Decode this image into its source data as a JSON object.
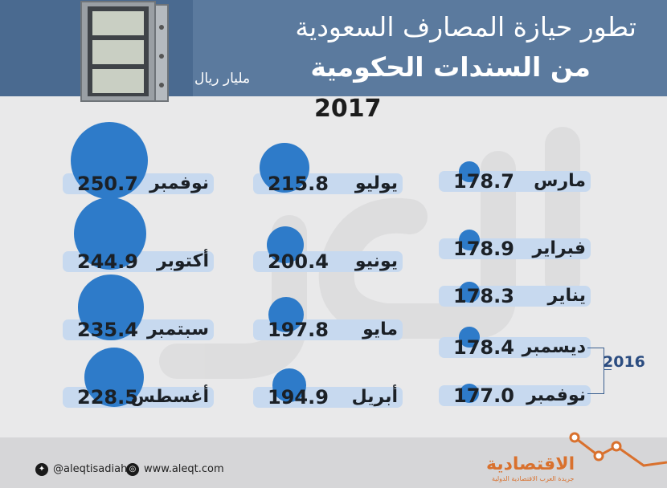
{
  "header": {
    "title_line1": "تطور حيازة المصارف السعودية",
    "title_line2": "من السندات الحكومية",
    "unit": "مليار ريال",
    "year": "2017"
  },
  "colors": {
    "header": "#5b7a9e",
    "circle": "#2e7bc9",
    "pill": "#c7d9ef",
    "accent": "#d9712e"
  },
  "chart_data": {
    "type": "bubble",
    "title": "تطور حيازة المصارف السعودية من السندات الحكومية",
    "unit": "مليار ريال",
    "groups": [
      {
        "year": "2017",
        "points": [
          {
            "month": "نوفمبر",
            "value": 250.7
          },
          {
            "month": "أكتوبر",
            "value": 244.9
          },
          {
            "month": "سبتمبر",
            "value": 235.4
          },
          {
            "month": "أغسطس",
            "value": 228.5
          },
          {
            "month": "يوليو",
            "value": 215.8
          },
          {
            "month": "يونيو",
            "value": 200.4
          },
          {
            "month": "مايو",
            "value": 197.8
          },
          {
            "month": "أبريل",
            "value": 194.9
          },
          {
            "month": "مارس",
            "value": 178.7
          },
          {
            "month": "فبراير",
            "value": 178.9
          },
          {
            "month": "يناير",
            "value": 178.3
          }
        ]
      },
      {
        "year": "2016",
        "points": [
          {
            "month": "ديسمبر",
            "value": 178.4
          },
          {
            "month": "نوفمبر",
            "value": 177.0
          }
        ]
      }
    ],
    "labels": [
      {
        "month": "نوفمبر",
        "value": "250.7"
      },
      {
        "month": "أكتوبر",
        "value": "244.9"
      },
      {
        "month": "سبتمبر",
        "value": "235.4"
      },
      {
        "month": "أغسطس",
        "value": "228.5"
      },
      {
        "month": "يوليو",
        "value": "215.8"
      },
      {
        "month": "يونيو",
        "value": "200.4"
      },
      {
        "month": "مايو",
        "value": "197.8"
      },
      {
        "month": "أبريل",
        "value": "194.9"
      },
      {
        "month": "مارس",
        "value": "178.7"
      },
      {
        "month": "فبراير",
        "value": "178.9"
      },
      {
        "month": "يناير",
        "value": "178.3"
      },
      {
        "month": "ديسمبر",
        "value": "178.4"
      },
      {
        "month": "نوفمبر",
        "value": "177.0"
      }
    ],
    "year_2016": "2016"
  },
  "footer": {
    "twitter": "@aleqtisadiah",
    "website": "www.aleqt.com",
    "logo": "الاقتصادية",
    "logo_sub": "جريدة العرب الاقتصادية الدولية"
  }
}
